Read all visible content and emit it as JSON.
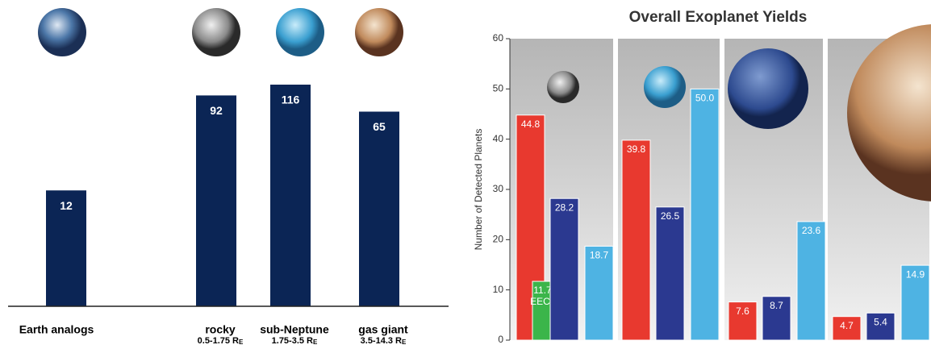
{
  "chart_data": [
    {
      "type": "bar",
      "log_scale": true,
      "categories": [
        "Earth analogs",
        "rocky",
        "sub-Neptune",
        "gas giant"
      ],
      "sublabels": [
        null,
        {
          "text": "0.5-1.75 R",
          "sub": "E"
        },
        {
          "text": "1.75-3.5 R",
          "sub": "E"
        },
        {
          "text": "3.5-14.3 R",
          "sub": "E"
        }
      ],
      "values": [
        12,
        92,
        116,
        65
      ],
      "color": "#0b2555"
    },
    {
      "type": "grouped_bar",
      "title": "Overall Exoplanet Yields",
      "y_label": "Number of Detected Planets",
      "categories": [
        null,
        null,
        null,
        null
      ],
      "ylim": [
        0,
        60
      ],
      "yticks": [
        0,
        10,
        20,
        30,
        40,
        50,
        60
      ],
      "series": [
        {
          "color": "#e8392f",
          "values": [
            44.8,
            39.8,
            7.6,
            4.7
          ],
          "value_labels": [
            "44.8",
            "39.8",
            "7.6",
            "4.7"
          ]
        },
        {
          "name": "EECs",
          "color": "#3bb54a",
          "values": [
            11.7,
            null,
            null,
            null
          ],
          "value_labels": [
            "11.7",
            null,
            null,
            null
          ]
        },
        {
          "color": "#2b3990",
          "values": [
            28.2,
            26.5,
            8.7,
            5.4
          ],
          "value_labels": [
            "28.2",
            "26.5",
            "8.7",
            "5.4"
          ]
        },
        {
          "color": "#4eb3e3",
          "values": [
            18.7,
            50.0,
            23.6,
            14.9
          ],
          "value_labels": [
            "18.7",
            "50.0",
            "23.6",
            "14.9"
          ]
        }
      ]
    }
  ]
}
